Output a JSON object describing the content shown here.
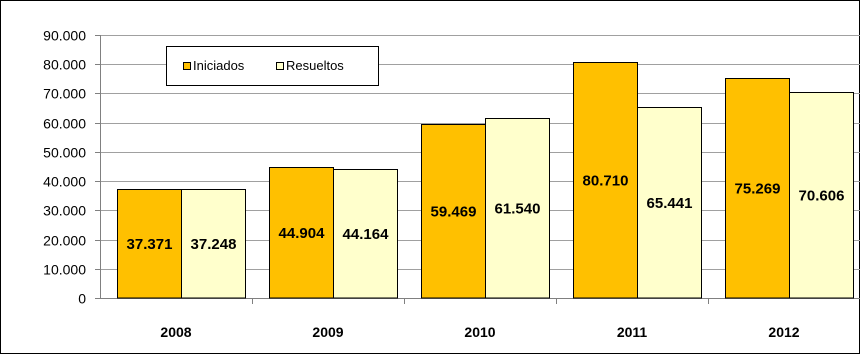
{
  "chart_data": {
    "type": "bar",
    "categories": [
      "2008",
      "2009",
      "2010",
      "2011",
      "2012"
    ],
    "series": [
      {
        "name": "Iniciados",
        "values": [
          37371,
          44904,
          59469,
          80710,
          75269
        ],
        "labels": [
          "37.371",
          "44.904",
          "59.469",
          "80.710",
          "75.269"
        ],
        "color": "#FFC000"
      },
      {
        "name": "Resueltos",
        "values": [
          37248,
          44164,
          61540,
          65441,
          70606
        ],
        "labels": [
          "37.248",
          "44.164",
          "61.540",
          "65.441",
          "70.606"
        ],
        "color": "#FFFFCC"
      }
    ],
    "ylim": [
      0,
      90000
    ],
    "yticks": [
      "0",
      "10.000",
      "20.000",
      "30.000",
      "40.000",
      "50.000",
      "60.000",
      "70.000",
      "80.000",
      "90.000"
    ],
    "grid": true,
    "legend_position": "top-left",
    "bar_edge_color": "#000000",
    "grid_color": "#A0A0A0"
  }
}
